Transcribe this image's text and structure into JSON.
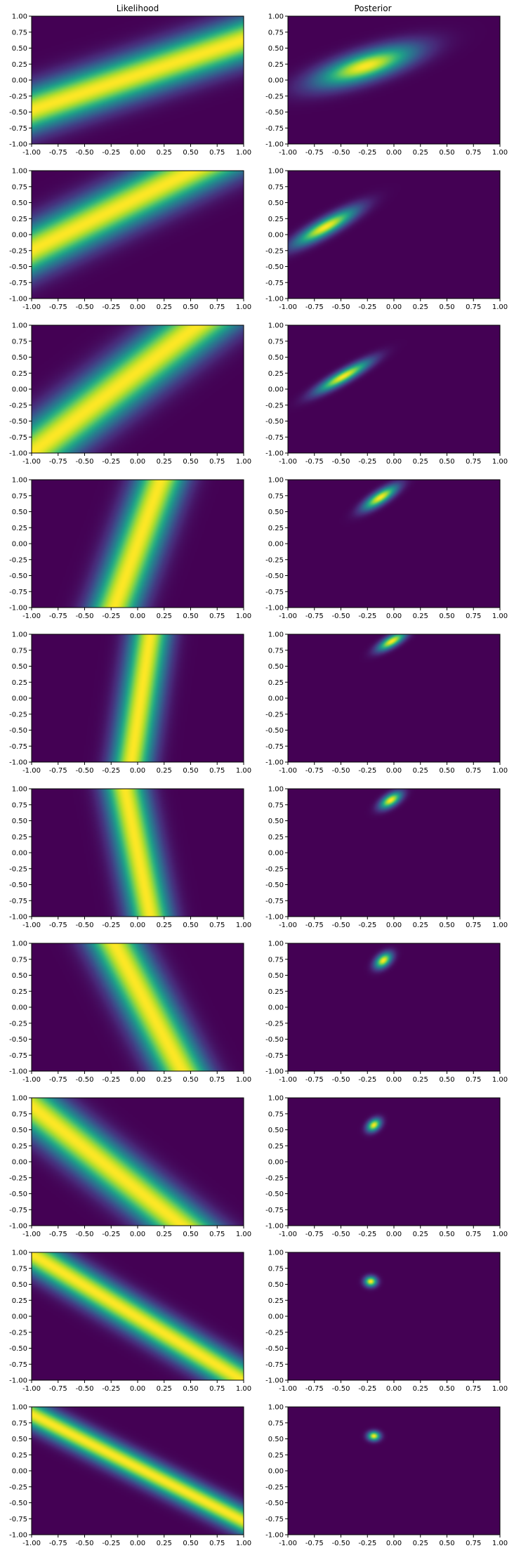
{
  "chart_data": {
    "type": "heatmap",
    "layout": "10 rows x 2 columns grid of heatmaps",
    "columns": [
      "Likelihood",
      "Posterior"
    ],
    "colormap": "viridis",
    "colors": {
      "low": "#440154",
      "mid": "#21918c",
      "high": "#fde725"
    },
    "x_ticks": [
      "-1.00",
      "-0.75",
      "-0.50",
      "-0.25",
      "0.00",
      "0.25",
      "0.50",
      "0.75",
      "1.00"
    ],
    "y_ticks": [
      "-1.00",
      "-0.75",
      "-0.50",
      "-0.25",
      "0.00",
      "0.25",
      "0.50",
      "0.75",
      "1.00"
    ],
    "xlim": [
      -1,
      1
    ],
    "ylim": [
      -1,
      1
    ],
    "grid": false,
    "likelihood_bands": [
      {
        "row": 1,
        "intercept": 0.08,
        "slope": 0.55,
        "width": 0.22
      },
      {
        "row": 2,
        "intercept": 0.58,
        "slope": 0.82,
        "width": 0.22
      },
      {
        "row": 3,
        "intercept": 0.28,
        "slope": 1.28,
        "width": 0.22
      },
      {
        "row": 4,
        "intercept": 0.0,
        "slope": 0.22,
        "width": 0.16,
        "orientation": "x_of_y"
      },
      {
        "row": 5,
        "intercept": 0.03,
        "slope": 0.09,
        "width": 0.13,
        "orientation": "x_of_y"
      },
      {
        "row": 6,
        "intercept": 0.0,
        "slope": -0.12,
        "width": 0.14,
        "orientation": "x_of_y"
      },
      {
        "row": 7,
        "intercept": 0.1,
        "slope": -0.32,
        "width": 0.17,
        "orientation": "x_of_y"
      },
      {
        "row": 8,
        "intercept": -0.45,
        "slope": -1.32,
        "width": 0.19
      },
      {
        "row": 9,
        "intercept": -0.02,
        "slope": -1.0,
        "width": 0.15
      },
      {
        "row": 10,
        "intercept": 0.05,
        "slope": -0.84,
        "width": 0.12
      }
    ],
    "posterior_gaussians": [
      {
        "row": 1,
        "mean": [
          -0.27,
          0.22
        ],
        "sd": [
          0.32,
          0.22
        ],
        "corr": 0.7
      },
      {
        "row": 2,
        "mean": [
          -0.65,
          0.12
        ],
        "sd": [
          0.2,
          0.2
        ],
        "corr": 0.87
      },
      {
        "row": 3,
        "mean": [
          -0.48,
          0.2
        ],
        "sd": [
          0.17,
          0.17
        ],
        "corr": 0.9
      },
      {
        "row": 4,
        "mean": [
          -0.13,
          0.73
        ],
        "sd": [
          0.11,
          0.13
        ],
        "corr": 0.8
      },
      {
        "row": 5,
        "mean": [
          -0.02,
          0.9
        ],
        "sd": [
          0.09,
          0.1
        ],
        "corr": 0.75
      },
      {
        "row": 6,
        "mean": [
          -0.03,
          0.83
        ],
        "sd": [
          0.07,
          0.09
        ],
        "corr": 0.6
      },
      {
        "row": 7,
        "mean": [
          -0.1,
          0.74
        ],
        "sd": [
          0.055,
          0.085
        ],
        "corr": 0.45
      },
      {
        "row": 8,
        "mean": [
          -0.19,
          0.58
        ],
        "sd": [
          0.045,
          0.07
        ],
        "corr": 0.35
      },
      {
        "row": 9,
        "mean": [
          -0.22,
          0.55
        ],
        "sd": [
          0.04,
          0.055
        ],
        "corr": 0.0
      },
      {
        "row": 10,
        "mean": [
          -0.19,
          0.55
        ],
        "sd": [
          0.04,
          0.05
        ],
        "corr": 0.0
      }
    ]
  }
}
